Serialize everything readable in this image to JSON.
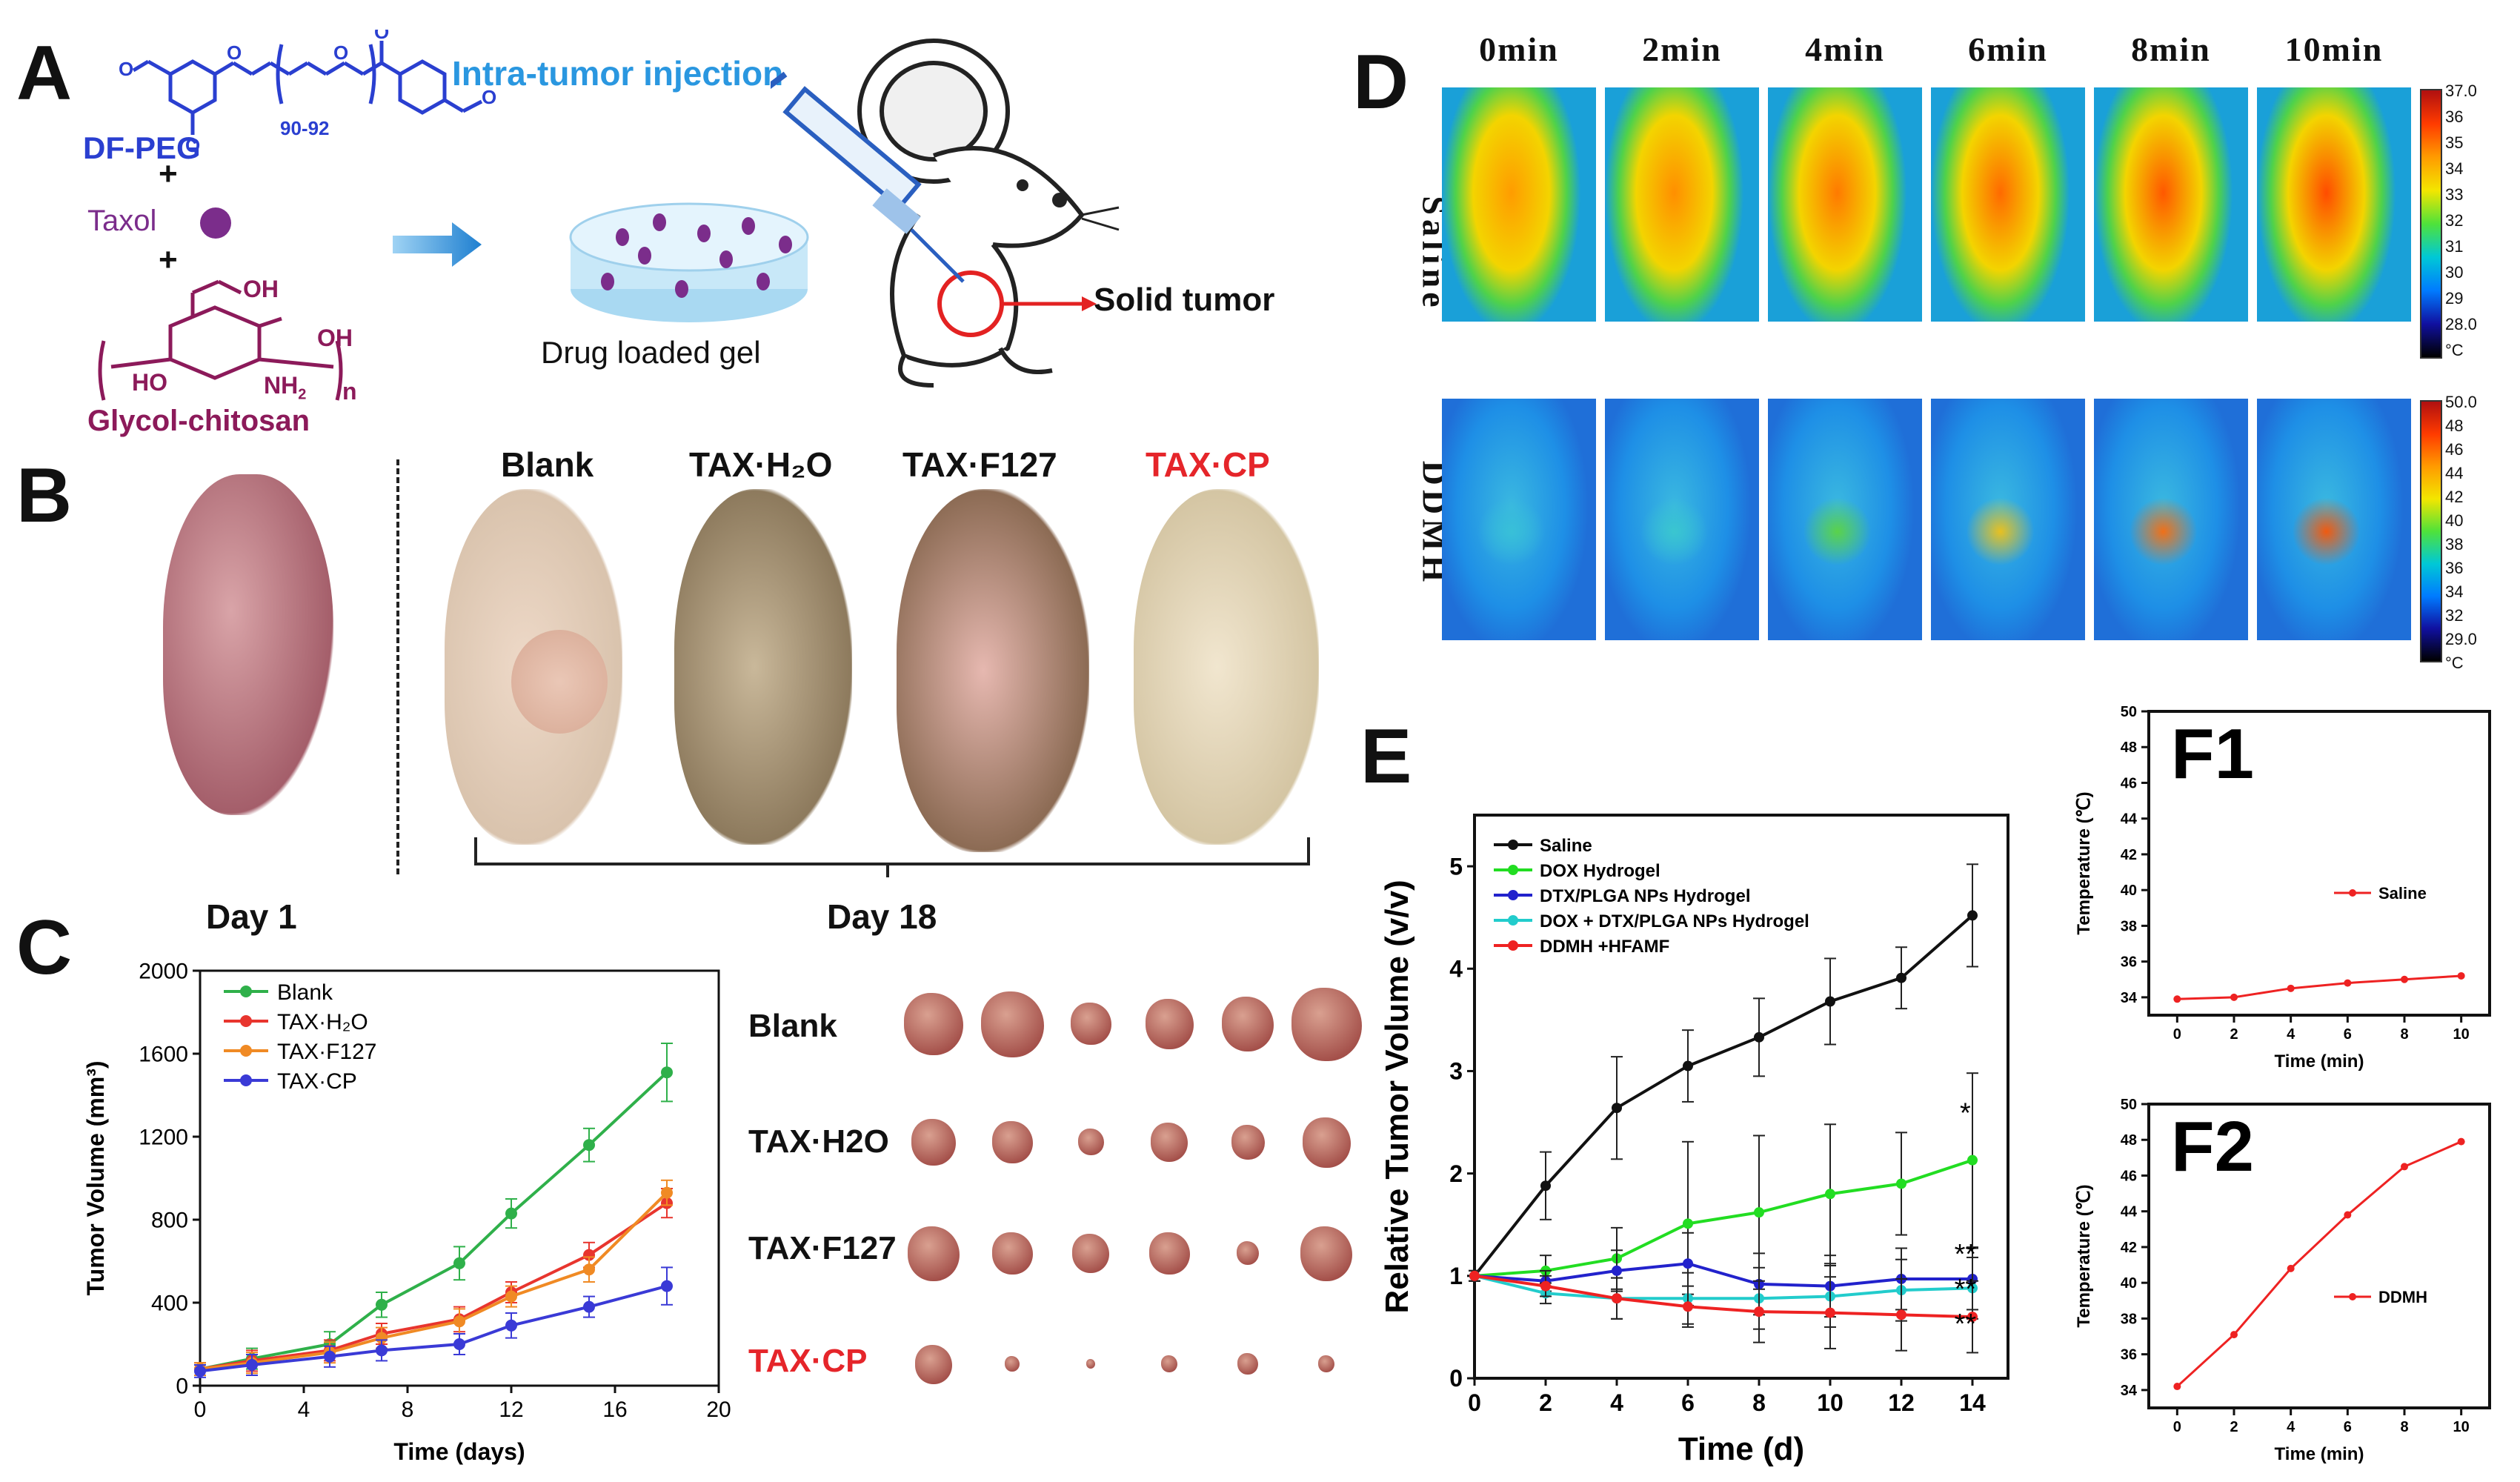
{
  "panel_A": {
    "letter": "A",
    "df_peg": "DF-PEG",
    "repeat": "90-92",
    "taxol": "Taxol",
    "plus1": "+",
    "plus2": "+",
    "glycol_chitosan": "Glycol-chitosan",
    "oh1": "OH",
    "oh2": "OH",
    "ho": "HO",
    "nh2": "NH",
    "n": "n",
    "intra": "Intra-tumor injection",
    "drug_gel": "Drug loaded gel",
    "solid_tumor": "Solid tumor"
  },
  "panel_B": {
    "letter": "B",
    "groups": [
      "Blank",
      "TAX·H₂O",
      "TAX·F127",
      "TAX·CP"
    ],
    "day1": "Day 1",
    "day18": "Day 18"
  },
  "panel_C": {
    "letter": "C",
    "tumor_rows": [
      "Blank",
      "TAX·H2O",
      "TAX·F127",
      "TAX·CP"
    ]
  },
  "panel_D": {
    "letter": "D",
    "times": [
      "0min",
      "2min",
      "4min",
      "6min",
      "8min",
      "10min"
    ],
    "rows": [
      "Saline",
      "DDMH"
    ],
    "scale1": [
      "37.0",
      "36",
      "35",
      "34",
      "33",
      "32",
      "31",
      "30",
      "29",
      "28.0",
      "°C"
    ],
    "scale2": [
      "50.0",
      "48",
      "46",
      "44",
      "42",
      "40",
      "38",
      "36",
      "34",
      "32",
      "29.0",
      "°C"
    ]
  },
  "panel_E": {
    "letter": "E"
  },
  "panel_F": {
    "f1": "F1",
    "f2": "F2"
  },
  "chart_data": [
    {
      "id": "C",
      "type": "line",
      "xlabel": "Time (days)",
      "ylabel": "Tumor Volume (mm³)",
      "xlim": [
        0,
        20
      ],
      "ylim": [
        0,
        2000
      ],
      "xticks": [
        0,
        4,
        8,
        12,
        16,
        20
      ],
      "yticks": [
        0,
        400,
        800,
        1200,
        1600,
        2000
      ],
      "legend_position": "top-left",
      "series": [
        {
          "name": "Blank",
          "color": "#2fb04a",
          "x": [
            0,
            2,
            5,
            7,
            10,
            12,
            15,
            18
          ],
          "y": [
            80,
            130,
            200,
            390,
            590,
            830,
            1160,
            1510
          ],
          "err": [
            30,
            50,
            60,
            60,
            80,
            70,
            80,
            140
          ]
        },
        {
          "name": "TAX·H₂O",
          "color": "#e8352e",
          "x": [
            0,
            2,
            5,
            7,
            10,
            12,
            15,
            18
          ],
          "y": [
            80,
            120,
            170,
            250,
            320,
            450,
            630,
            880
          ],
          "err": [
            30,
            50,
            50,
            50,
            60,
            50,
            60,
            70
          ]
        },
        {
          "name": "TAX·F127",
          "color": "#f08a24",
          "x": [
            0,
            2,
            5,
            7,
            10,
            12,
            15,
            18
          ],
          "y": [
            80,
            110,
            160,
            230,
            310,
            430,
            560,
            930
          ],
          "err": [
            30,
            50,
            50,
            50,
            60,
            50,
            60,
            60
          ]
        },
        {
          "name": "TAX·CP",
          "color": "#3a3ad6",
          "x": [
            0,
            2,
            5,
            7,
            10,
            12,
            15,
            18
          ],
          "y": [
            70,
            100,
            140,
            170,
            200,
            290,
            380,
            480
          ],
          "err": [
            30,
            50,
            50,
            50,
            50,
            60,
            50,
            90
          ]
        }
      ]
    },
    {
      "id": "E",
      "type": "line",
      "xlabel": "Time (d)",
      "ylabel": "Relative Tumor Volume (v/v)",
      "xlim": [
        0,
        15
      ],
      "ylim": [
        0,
        5.5
      ],
      "xticks": [
        0,
        2,
        4,
        6,
        8,
        10,
        12,
        14
      ],
      "yticks": [
        0,
        1,
        2,
        3,
        4,
        5
      ],
      "legend_position": "top-left",
      "annotations": [
        "*",
        "**",
        "**",
        "**"
      ],
      "series": [
        {
          "name": "Saline",
          "color": "#111111",
          "x": [
            0,
            2,
            4,
            6,
            8,
            10,
            12,
            14
          ],
          "y": [
            1,
            1.88,
            2.64,
            3.05,
            3.33,
            3.68,
            3.91,
            4.52
          ],
          "err": [
            0.05,
            0.33,
            0.5,
            0.35,
            0.38,
            0.42,
            0.3,
            0.5
          ]
        },
        {
          "name": "DOX Hydrogel",
          "color": "#22dd22",
          "x": [
            0,
            2,
            4,
            6,
            8,
            10,
            12,
            14
          ],
          "y": [
            1,
            1.05,
            1.17,
            1.51,
            1.62,
            1.8,
            1.9,
            2.13
          ],
          "err": [
            0.05,
            0.15,
            0.3,
            0.8,
            0.75,
            0.68,
            0.5,
            0.85
          ]
        },
        {
          "name": "DTX/PLGA NPs Hydrogel",
          "color": "#2222cc",
          "x": [
            0,
            2,
            4,
            6,
            8,
            10,
            12,
            14
          ],
          "y": [
            1,
            0.95,
            1.05,
            1.12,
            0.92,
            0.9,
            0.97,
            0.97
          ],
          "err": [
            0.05,
            0.1,
            0.2,
            0.3,
            0.3,
            0.3,
            0.3,
            0.3
          ]
        },
        {
          "name": "DOX + DTX/PLGA NPs Hydrogel",
          "color": "#22cccc",
          "x": [
            0,
            2,
            4,
            6,
            8,
            10,
            12,
            14
          ],
          "y": [
            1,
            0.83,
            0.78,
            0.78,
            0.78,
            0.8,
            0.86,
            0.88
          ],
          "err": [
            0.05,
            0.1,
            0.2,
            0.25,
            0.3,
            0.3,
            0.3,
            0.3
          ]
        },
        {
          "name": "DDMH +HFAMF",
          "color": "#ee2222",
          "x": [
            0,
            2,
            4,
            6,
            8,
            10,
            12,
            14
          ],
          "y": [
            1,
            0.9,
            0.78,
            0.7,
            0.65,
            0.64,
            0.62,
            0.6
          ],
          "err": [
            0.05,
            0.1,
            0.2,
            0.2,
            0.3,
            0.35,
            0.35,
            0.35
          ]
        }
      ]
    },
    {
      "id": "F1",
      "type": "line",
      "xlabel": "Time (min)",
      "ylabel": "Temperature (℃)",
      "xlim": [
        -1,
        11
      ],
      "ylim": [
        33,
        50
      ],
      "xticks": [
        0,
        2,
        4,
        6,
        8,
        10
      ],
      "yticks": [
        34,
        36,
        38,
        40,
        42,
        44,
        46,
        48,
        50
      ],
      "legend_position": "center-right",
      "series": [
        {
          "name": "Saline",
          "color": "#ee2222",
          "x": [
            0,
            2,
            4,
            6,
            8,
            10
          ],
          "y": [
            33.9,
            34.0,
            34.5,
            34.8,
            35.0,
            35.2
          ]
        }
      ]
    },
    {
      "id": "F2",
      "type": "line",
      "xlabel": "Time (min)",
      "ylabel": "Temperature (℃)",
      "xlim": [
        -1,
        11
      ],
      "ylim": [
        33,
        50
      ],
      "xticks": [
        0,
        2,
        4,
        6,
        8,
        10
      ],
      "yticks": [
        34,
        36,
        38,
        40,
        42,
        44,
        46,
        48,
        50
      ],
      "legend_position": "center-right",
      "series": [
        {
          "name": "DDMH",
          "color": "#ee2222",
          "x": [
            0,
            2,
            4,
            6,
            8,
            10
          ],
          "y": [
            34.2,
            37.1,
            40.8,
            43.8,
            46.5,
            47.9
          ]
        }
      ]
    }
  ]
}
